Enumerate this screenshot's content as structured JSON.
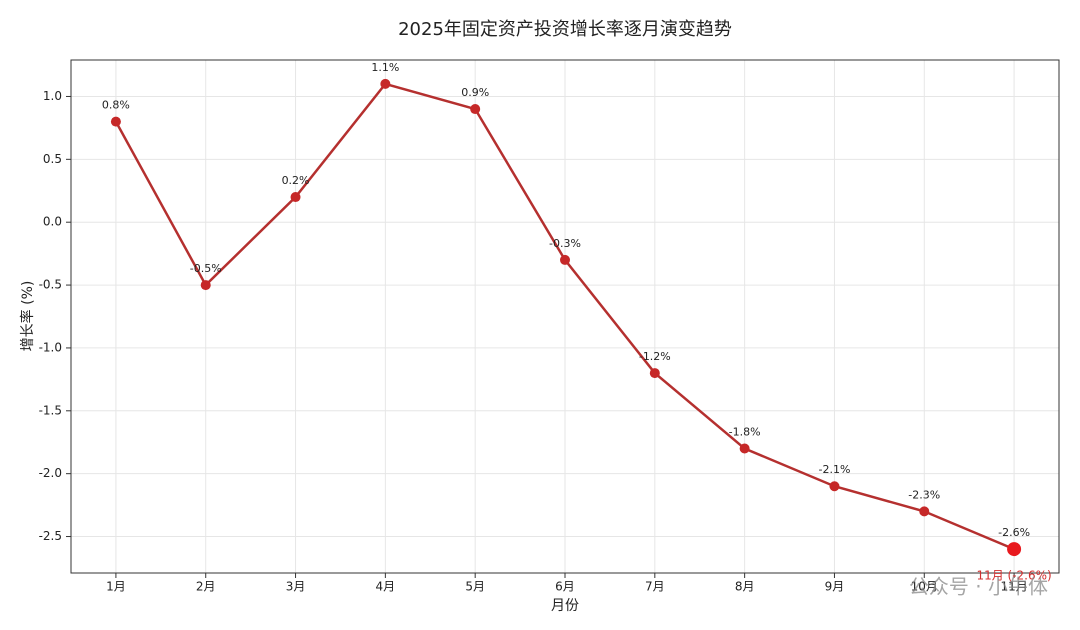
{
  "chart_data": {
    "type": "line",
    "title": "2025年固定资产投资增长率逐月演变趋势",
    "x_label": "月份",
    "y_label": "增长率 (%)",
    "categories": [
      "1月",
      "2月",
      "3月",
      "4月",
      "5月",
      "6月",
      "7月",
      "8月",
      "9月",
      "10月",
      "11月"
    ],
    "values": [
      0.8,
      -0.5,
      0.2,
      1.1,
      0.9,
      -0.3,
      -1.2,
      -1.8,
      -2.1,
      -2.3,
      -2.6
    ],
    "value_labels": [
      "0.8%",
      "-0.5%",
      "0.2%",
      "1.1%",
      "0.9%",
      "-0.3%",
      "-1.2%",
      "-1.8%",
      "-2.1%",
      "-2.3%",
      "-2.6%"
    ],
    "color": "#b5302f",
    "marker_color": "#c62828",
    "highlight_color": "#e8191e",
    "ylim": [
      -2.79,
      1.29
    ],
    "yticks": [
      -2.5,
      {
        "value": -2,
        "label": "-2.0"
      },
      -1.5,
      {
        "value": -1,
        "label": "-1.0"
      },
      -0.5,
      {
        "value": 0,
        "label": "0.0"
      },
      0.5,
      {
        "value": 1,
        "label": "1.0"
      }
    ],
    "grid": true,
    "annotation": {
      "text": "11月 (-2.6%)",
      "color": "#d32f2f"
    },
    "watermark": "公众号 · 小牛体"
  }
}
